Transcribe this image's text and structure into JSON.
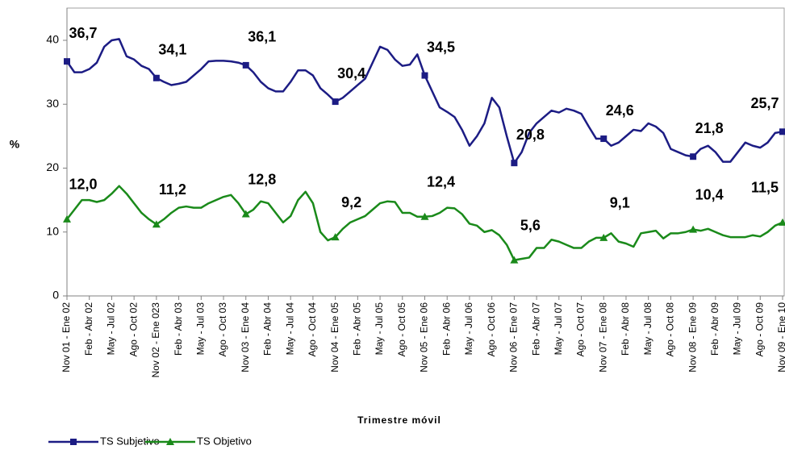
{
  "chart_data": {
    "type": "line",
    "y_label": "%",
    "x_label": "Trimestre móvil",
    "ylim": [
      0,
      40
    ],
    "yticks": [
      0,
      10,
      20,
      30,
      40
    ],
    "categories": [
      "Nov 01 - Ene 02",
      null,
      null,
      "Feb - Abr 02",
      null,
      null,
      "May - Jul 02",
      null,
      null,
      "Ago - Oct 02",
      null,
      null,
      "Nov 02 - Ene 023",
      null,
      null,
      "Feb - Abr 03",
      null,
      null,
      "May - Jul 03",
      null,
      null,
      "Ago - Oct 03",
      null,
      null,
      "Nov 03 - Ene 04",
      null,
      null,
      "Feb - Abr 04",
      null,
      null,
      "May - Jul 04",
      null,
      null,
      "Ago - Oct 04",
      null,
      null,
      "Nov 04 - Ene 05",
      null,
      null,
      "Feb - Abr 05",
      null,
      null,
      "May - Jul 05",
      null,
      null,
      "Ago - Oct 05",
      null,
      null,
      "Nov 05 - Ene 06",
      null,
      null,
      "Feb - Abr 06",
      null,
      null,
      "May - Jul 06",
      null,
      null,
      "Ago - Oct 06",
      null,
      null,
      "Nov 06 - Ene 07",
      null,
      null,
      "Feb - Abr 07",
      null,
      null,
      "May - Jul 07",
      null,
      null,
      "Ago - Oct 07",
      null,
      null,
      "Nov 07 - Ene 08",
      null,
      null,
      "Feb - Abr 08",
      null,
      null,
      "May - Jul 08",
      null,
      null,
      "Ago - Oct 08",
      null,
      null,
      "Nov 08 - Ene 09",
      null,
      null,
      "Feb - Abr 09",
      null,
      null,
      "May - Jul 09",
      null,
      null,
      "Ago - Oct 09",
      null,
      null,
      "Nov 09 - Ene 10"
    ],
    "series": [
      {
        "name": "TS Subjetivo",
        "color": "#1c1c84",
        "marker": "square",
        "values": [
          36.7,
          35,
          35,
          35.5,
          36.5,
          39,
          40,
          40.2,
          37.5,
          37,
          36,
          35.5,
          34.1,
          33.5,
          33,
          33.2,
          33.5,
          34.5,
          35.5,
          36.7,
          36.8,
          36.8,
          36.7,
          36.5,
          36.1,
          35,
          33.5,
          32.5,
          32,
          32,
          33.5,
          35.3,
          35.3,
          34.5,
          32.5,
          31.5,
          30.4,
          31,
          32,
          33,
          34,
          36.5,
          39,
          38.5,
          37,
          36,
          36.2,
          37.8,
          34.5,
          32,
          29.5,
          28.8,
          28,
          26,
          23.5,
          25,
          27,
          31,
          29.5,
          25,
          20.8,
          22.5,
          25.5,
          27,
          28,
          29,
          28.7,
          29.3,
          29,
          28.5,
          26.5,
          24.6,
          24.6,
          23.5,
          24,
          25,
          26,
          25.8,
          27,
          26.5,
          25.5,
          23,
          22.5,
          22,
          21.8,
          23,
          23.5,
          22.5,
          21,
          21,
          22.5,
          24,
          23.5,
          23.2,
          24,
          25.5,
          25.7
        ],
        "value_labels": [
          "36,7",
          null,
          null,
          null,
          null,
          null,
          null,
          null,
          null,
          null,
          null,
          null,
          "34,1",
          null,
          null,
          null,
          null,
          null,
          null,
          null,
          null,
          null,
          null,
          null,
          "36,1",
          null,
          null,
          null,
          null,
          null,
          null,
          null,
          null,
          null,
          null,
          null,
          "30,4",
          null,
          null,
          null,
          null,
          null,
          null,
          null,
          null,
          null,
          null,
          null,
          "34,5",
          null,
          null,
          null,
          null,
          null,
          null,
          null,
          null,
          null,
          null,
          null,
          "20,8",
          null,
          null,
          null,
          null,
          null,
          null,
          null,
          null,
          null,
          null,
          null,
          "24,6",
          null,
          null,
          null,
          null,
          null,
          null,
          null,
          null,
          null,
          null,
          null,
          "21,8",
          null,
          null,
          null,
          null,
          null,
          null,
          null,
          null,
          null,
          null,
          null,
          "25,7"
        ]
      },
      {
        "name": "TS Objetivo",
        "color": "#1a8a1a",
        "marker": "triangle",
        "values": [
          12.0,
          13.5,
          15,
          15,
          14.7,
          15,
          16,
          17.2,
          16,
          14.5,
          13,
          12,
          11.2,
          12,
          13,
          13.8,
          14,
          13.8,
          13.8,
          14.5,
          15,
          15.5,
          15.8,
          14.5,
          12.8,
          13.5,
          14.8,
          14.5,
          13,
          11.5,
          12.5,
          15,
          16.3,
          14.5,
          10,
          8.7,
          9.2,
          10.5,
          11.5,
          12,
          12.5,
          13.5,
          14.5,
          14.8,
          14.7,
          13,
          13,
          12.4,
          12.4,
          12.5,
          13,
          13.8,
          13.7,
          12.8,
          11.3,
          11,
          10,
          10.3,
          9.5,
          8,
          5.6,
          5.8,
          6,
          7.5,
          7.5,
          8.8,
          8.5,
          8,
          7.5,
          7.5,
          8.5,
          9.1,
          9.1,
          9.8,
          8.5,
          8.2,
          7.7,
          9.8,
          10,
          10.2,
          9,
          9.8,
          9.8,
          10,
          10.4,
          10.2,
          10.5,
          10,
          9.5,
          9.2,
          9.2,
          9.2,
          9.5,
          9.3,
          10,
          11,
          11.5
        ],
        "value_labels": [
          "12,0",
          null,
          null,
          null,
          null,
          null,
          null,
          null,
          null,
          null,
          null,
          null,
          "11,2",
          null,
          null,
          null,
          null,
          null,
          null,
          null,
          null,
          null,
          null,
          null,
          "12,8",
          null,
          null,
          null,
          null,
          null,
          null,
          null,
          null,
          null,
          null,
          null,
          "9,2",
          null,
          null,
          null,
          null,
          null,
          null,
          null,
          null,
          null,
          null,
          null,
          "12,4",
          null,
          null,
          null,
          null,
          null,
          null,
          null,
          null,
          null,
          null,
          null,
          "5,6",
          null,
          null,
          null,
          null,
          null,
          null,
          null,
          null,
          null,
          null,
          null,
          "9,1",
          null,
          null,
          null,
          null,
          null,
          null,
          null,
          null,
          null,
          null,
          null,
          "10,4",
          null,
          null,
          null,
          null,
          null,
          null,
          null,
          null,
          null,
          null,
          null,
          "11,5"
        ]
      }
    ],
    "legend": "bottom-left"
  }
}
